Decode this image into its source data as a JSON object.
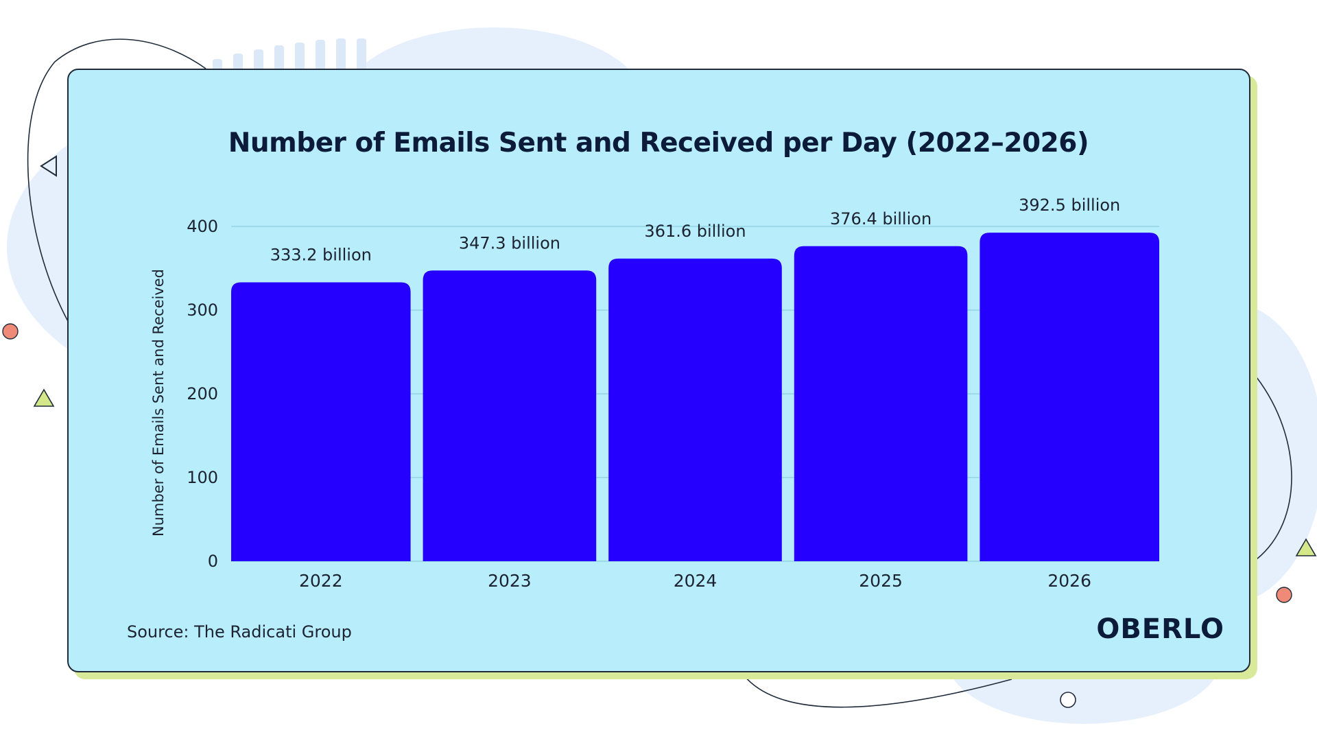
{
  "chart_data": {
    "type": "bar",
    "title": "Number of Emails Sent and Received per Day (2022–2026)",
    "ylabel": "Number of Emails Sent and Received",
    "xlabel": "",
    "ylim": [
      0,
      400
    ],
    "yticks": [
      0,
      100,
      200,
      300,
      400
    ],
    "grid": true,
    "categories": [
      "2022",
      "2023",
      "2024",
      "2025",
      "2026"
    ],
    "values": [
      333.2,
      347.3,
      361.6,
      376.4,
      392.5
    ],
    "data_labels": [
      "333.2 billion",
      "347.3 billion",
      "361.6 billion",
      "376.4 billion",
      "392.5 billion"
    ],
    "colors": {
      "bar": "#2600ff",
      "background": "#b8eefc",
      "grid": "#8ccfe0"
    }
  },
  "footer": {
    "source": "Source: The Radicati Group",
    "brand": "OBERLO"
  }
}
